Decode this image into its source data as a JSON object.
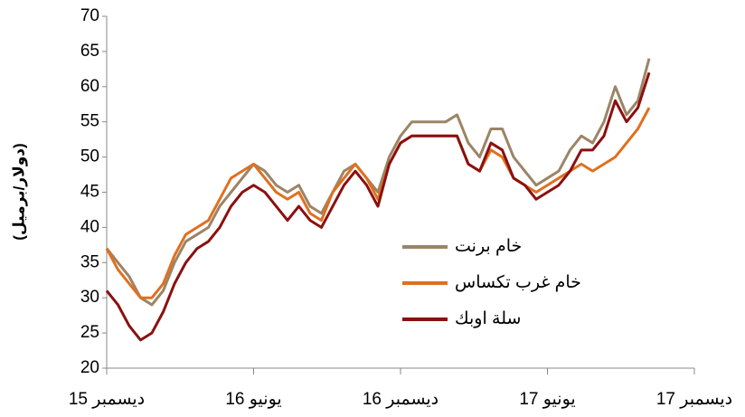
{
  "chart_data": {
    "type": "line",
    "y_label": "(دولار/برميل)",
    "x": [
      0,
      2,
      4,
      6,
      8,
      10,
      12,
      14,
      16,
      18,
      20,
      22,
      24,
      26,
      28,
      30,
      32,
      34,
      36,
      38,
      40,
      42,
      44,
      46,
      48,
      50,
      52,
      54,
      56,
      58,
      60,
      62,
      64,
      66,
      68,
      70,
      72,
      74,
      76,
      78,
      80,
      82,
      84,
      86,
      88,
      90,
      92,
      94,
      96
    ],
    "series": [
      {
        "name": "خام برنت",
        "color": "#9c8466",
        "values": [
          37,
          35,
          33,
          30,
          29,
          31,
          35,
          38,
          39,
          40,
          43,
          45,
          47,
          49,
          48,
          46,
          45,
          46,
          43,
          42,
          45,
          48,
          49,
          47,
          45,
          50,
          53,
          55,
          55,
          55,
          55,
          56,
          52,
          50,
          54,
          54,
          50,
          48,
          46,
          47,
          48,
          51,
          53,
          52,
          55,
          60,
          56,
          58,
          64
        ]
      },
      {
        "name": "خام غرب  تكساس",
        "color": "#e07020",
        "values": [
          37,
          34,
          32,
          30,
          30,
          32,
          36,
          39,
          40,
          41,
          44,
          47,
          48,
          49,
          47,
          45,
          44,
          45,
          42,
          41,
          45,
          47,
          49,
          47,
          44,
          49,
          52,
          53,
          53,
          53,
          53,
          53,
          49,
          48,
          51,
          50,
          47,
          46,
          45,
          46,
          47,
          48,
          49,
          48,
          49,
          50,
          52,
          54,
          57
        ]
      },
      {
        "name": "سلة اوبك",
        "color": "#8b1010",
        "values": [
          31,
          29,
          26,
          24,
          25,
          28,
          32,
          35,
          37,
          38,
          40,
          43,
          45,
          46,
          45,
          43,
          41,
          43,
          41,
          40,
          43,
          46,
          48,
          46,
          43,
          49,
          52,
          53,
          53,
          53,
          53,
          53,
          49,
          48,
          52,
          51,
          47,
          46,
          44,
          45,
          46,
          48,
          51,
          51,
          53,
          58,
          55,
          57,
          62
        ]
      }
    ],
    "xlim": [
      0,
      104
    ],
    "xticks": [
      {
        "value": 0,
        "label": "ديسمبر 15"
      },
      {
        "value": 26,
        "label": "يونيو 16"
      },
      {
        "value": 52,
        "label": "ديسمبر 16"
      },
      {
        "value": 78,
        "label": "يونيو 17"
      },
      {
        "value": 104,
        "label": "ديسمبر 17"
      }
    ],
    "ylim": [
      20,
      70
    ],
    "yticks": [
      20,
      25,
      30,
      35,
      40,
      45,
      50,
      55,
      60,
      65,
      70
    ],
    "grid": false
  }
}
